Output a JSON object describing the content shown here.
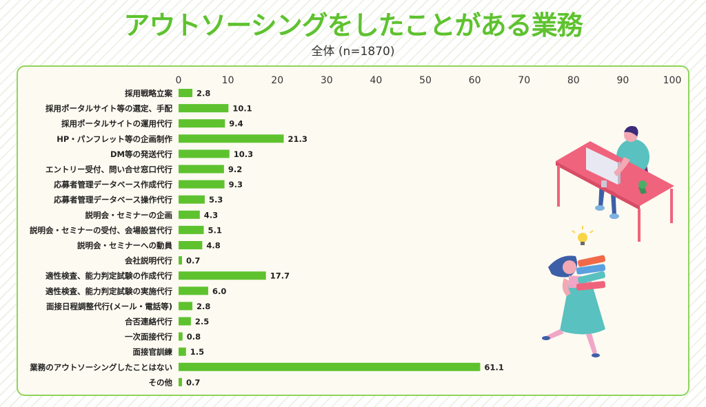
{
  "title": "アウトソーシングをしたことがある業務",
  "subtitle": "全体 (n=1870)",
  "colors": {
    "bar": "#5ec22f",
    "title": "#5ec22f",
    "panel_border": "#8ed45a",
    "panel_bg": "#fdfaf1"
  },
  "chart_data": {
    "type": "bar",
    "orientation": "horizontal",
    "xlim": [
      0,
      100
    ],
    "x_ticks": [
      0,
      10,
      20,
      30,
      40,
      50,
      60,
      70,
      80,
      90,
      100
    ],
    "axis_position": "top",
    "grid": false,
    "categories": [
      "採用戦略立案",
      "採用ポータルサイト等の選定、手配",
      "採用ポータルサイトの運用代行",
      "HP・パンフレット等の企画制作",
      "DM等の発送代行",
      "エントリー受付、問い合せ窓口代行",
      "応募者管理データベース作成代行",
      "応募者管理データベース操作代行",
      "説明会・セミナーの企画",
      "説明会・セミナーの受付、会場設営代行",
      "説明会・セミナーへの動員",
      "会社説明代行",
      "適性検査、能力判定試験の作成代行",
      "適性検査、能力判定試験の実施代行",
      "面接日程調整代行(メール・電話等)",
      "合否連絡代行",
      "一次面接代行",
      "面接官訓練",
      "業務のアウトソーシングしたことはない",
      "その他"
    ],
    "values": [
      2.8,
      10.1,
      9.4,
      21.3,
      10.3,
      9.2,
      9.3,
      5.3,
      4.3,
      5.1,
      4.8,
      0.7,
      17.7,
      6.0,
      2.8,
      2.5,
      0.8,
      1.5,
      61.1,
      0.7
    ],
    "value_labels": [
      "2.8",
      "10.1",
      "9.4",
      "21.3",
      "10.3",
      "9.2",
      "9.3",
      "5.3",
      "4.3",
      "5.1",
      "4.8",
      "0.7",
      "17.7",
      "6.0",
      "2.8",
      "2.5",
      "0.8",
      "1.5",
      "61.1",
      "0.7"
    ]
  }
}
